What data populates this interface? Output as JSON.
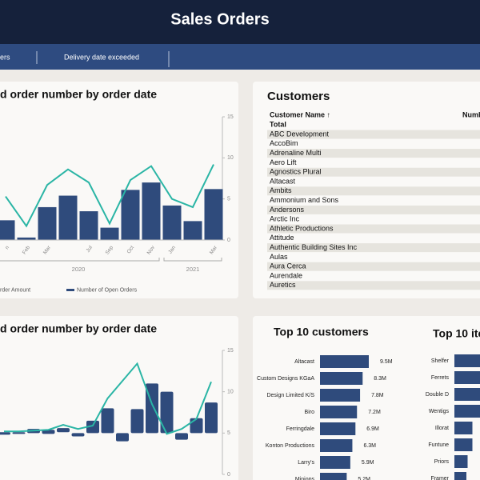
{
  "header": {
    "title": "Sales Orders"
  },
  "tabs": [
    "ers",
    "Delivery date exceeded"
  ],
  "chart_data": [
    {
      "type": "combo",
      "title": "d order number by order date",
      "categories": [
        "n",
        "Feb",
        "Mar",
        null,
        "Jul",
        "Sep",
        "Oct",
        "Nov",
        "Jan",
        null,
        "Mar"
      ],
      "groups": [
        "2020",
        "2021"
      ],
      "series": [
        {
          "name": "rder Amount",
          "type": "bar",
          "color": "#2f4b7c",
          "values": [
            2.4,
            0.3,
            4,
            5.4,
            3.5,
            1.5,
            6.1,
            7,
            4.2,
            2.3,
            6.2
          ]
        },
        {
          "name": "Number of Open Orders",
          "type": "line",
          "color": "#2ab5a5",
          "values": [
            5.3,
            1.7,
            6.7,
            8.6,
            7,
            2,
            7.3,
            9,
            5,
            4,
            9.2
          ]
        }
      ],
      "ylim": [
        0,
        15
      ],
      "yticks": [
        0,
        5,
        10,
        15
      ]
    },
    {
      "type": "floating-combo",
      "title": "d order number by order date",
      "series": [
        {
          "type": "floating-bar",
          "color": "#2f4b7c",
          "low": [
            4.8,
            4.9,
            5,
            4.9,
            5.1,
            4.6,
            5,
            5,
            4,
            5,
            5,
            5,
            4.2,
            5,
            5
          ],
          "high": [
            5.1,
            5.1,
            5.5,
            5.4,
            5.6,
            5,
            6.5,
            8,
            5,
            7.9,
            11,
            10,
            5,
            6.8,
            8.7
          ]
        },
        {
          "type": "line",
          "color": "#2ab5a5",
          "values": [
            5.2,
            5.2,
            5.3,
            5.4,
            6,
            5.5,
            5.9,
            9.2,
            11.3,
            13.4,
            8.5,
            4.9,
            5.5,
            6.7,
            11.2
          ]
        }
      ],
      "ylim": [
        0,
        15
      ],
      "yticks": [
        0,
        5,
        10,
        15
      ]
    },
    {
      "type": "hbar",
      "title": "Top 10 customers",
      "color": "#2f4b7c",
      "categories": [
        "Altacast",
        "Custom Designs KGaA",
        "Design Limited K/S",
        "Biro",
        "Ferringdale",
        "Konton Productions",
        "Larry's",
        "Miniops"
      ],
      "values": [
        9.5,
        8.3,
        7.8,
        7.2,
        6.9,
        6.3,
        5.9,
        5.2
      ],
      "value_labels": [
        "9.5M",
        "8.3M",
        "7.8M",
        "7.2M",
        "6.9M",
        "6.3M",
        "5.9M",
        "5.2M"
      ]
    },
    {
      "type": "hbar",
      "title": "Top 10 ite",
      "color": "#2f4b7c",
      "categories": [
        "Shelfer",
        "Ferrets",
        "Double D",
        "Wentigs",
        "Illorat",
        "Funtune",
        "Priors",
        "Framer"
      ],
      "values": [
        3,
        2.9,
        2.8,
        2.7,
        1.5,
        1.5,
        1.1,
        1
      ]
    }
  ],
  "customers": {
    "title": "Customers",
    "columns": [
      "Customer Name ↑",
      "Numb"
    ],
    "total": "Total",
    "rows": [
      "ABC Development",
      "AccoBim",
      "Adrenaline Multi",
      "Aero Lift",
      "Agnostics Plural",
      "Altacast",
      "Ambits",
      "Ammonium and Sons",
      "Andersons",
      "Arctic Inc",
      "Athletic Productions",
      "Attitude",
      "Authentic Building Sites Inc",
      "Aulas",
      "Aura Cerca",
      "Aurendale",
      "Auretics"
    ]
  }
}
